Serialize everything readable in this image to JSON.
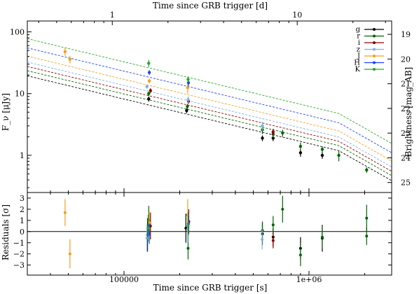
{
  "chart_data": {
    "type": "scatter",
    "top_xlabel": "Time since GRB trigger [d]",
    "xlabel": "Time since GRB trigger [s]",
    "ylabel": "F_ν [μJy]",
    "y2label": "Brightness [mag_AB]",
    "residual_ylabel": "Residuals [σ]",
    "x_scale": "log",
    "xlim": [
      30000,
      2800000
    ],
    "ylim": [
      0.25,
      150
    ],
    "y_scale": "log",
    "residual_ylim": [
      -3.9,
      3.5
    ],
    "legend_position": "top-right",
    "x_ticks": [
      {
        "value": 100000,
        "label": "100000"
      },
      {
        "value": 1000000,
        "label": "1e+06"
      }
    ],
    "top_ticks_days": [
      {
        "value": 1,
        "label": "1"
      },
      {
        "value": 10,
        "label": "10"
      }
    ],
    "y_ticks": [
      {
        "value": 1,
        "label": "1"
      },
      {
        "value": 10,
        "label": "10"
      },
      {
        "value": 100,
        "label": "100"
      }
    ],
    "mag_ticks": [
      {
        "value": 19,
        "label": "19"
      },
      {
        "value": 20,
        "label": "20"
      },
      {
        "value": 21,
        "label": "21"
      },
      {
        "value": 22,
        "label": "22"
      },
      {
        "value": 23,
        "label": "23"
      },
      {
        "value": 24,
        "label": "24"
      },
      {
        "value": 25,
        "label": "25"
      }
    ],
    "residual_ticks": [
      {
        "value": 3,
        "label": "3"
      },
      {
        "value": 2,
        "label": "2"
      },
      {
        "value": 1,
        "label": "1"
      },
      {
        "value": 0,
        "label": "0"
      },
      {
        "value": -1,
        "label": "−1"
      },
      {
        "value": -2,
        "label": "−2"
      },
      {
        "value": -3,
        "label": "−3"
      }
    ],
    "series": [
      {
        "name": "g",
        "color": "#000000",
        "model_scale": 0.24,
        "points": [
          [
            136000,
            8.2,
            0.8
          ],
          [
            218000,
            5.3,
            0.5
          ],
          [
            560000,
            1.9,
            0.2
          ],
          [
            640000,
            1.9,
            0.2
          ],
          [
            900000,
            1.1,
            0.15
          ],
          [
            1180000,
            1.0,
            0.12
          ]
        ],
        "residuals": [
          [
            134000,
            -0.3,
            1.5
          ],
          [
            216000,
            0.3,
            1.3
          ],
          [
            560000,
            -0.2,
            1.0
          ],
          [
            640000,
            -0.5,
            0.8
          ],
          [
            900000,
            -1.5,
            1.0
          ],
          [
            1180000,
            -0.6,
            1.2
          ]
        ]
      },
      {
        "name": "r",
        "color": "#006400",
        "model_scale": 0.29,
        "points": [
          [
            136000,
            10.0,
            0.8
          ],
          [
            220000,
            6.2,
            0.6
          ],
          [
            560000,
            2.6,
            0.4
          ],
          [
            640000,
            2.2,
            0.3
          ],
          [
            720000,
            2.3,
            0.3
          ],
          [
            900000,
            1.4,
            0.2
          ],
          [
            1180000,
            1.25,
            0.15
          ],
          [
            1450000,
            1.0,
            0.2
          ],
          [
            2050000,
            0.58,
            0.06
          ]
        ],
        "residuals": [
          [
            136000,
            1.0,
            1.3
          ],
          [
            222000,
            -1.5,
            1.0
          ],
          [
            560000,
            0.1,
            0.8
          ],
          [
            640000,
            0.6,
            0.8
          ],
          [
            720000,
            2.0,
            1.2
          ],
          [
            900000,
            -2.1,
            1.0
          ],
          [
            1180000,
            -0.5,
            1.0
          ],
          [
            2050000,
            1.2,
            1.2
          ],
          [
            2050000,
            -0.4,
            0.8
          ]
        ]
      },
      {
        "name": "i",
        "color": "#8b0000",
        "model_scale": 0.34,
        "points": [
          [
            139000,
            11.2,
            1.0
          ],
          [
            223000,
            7.5,
            0.7
          ],
          [
            640000,
            2.4,
            0.3
          ]
        ],
        "residuals": [
          [
            139000,
            0.5,
            1.2
          ],
          [
            224000,
            0.9,
            1.1
          ],
          [
            640000,
            -0.8,
            0.7
          ]
        ]
      },
      {
        "name": "z",
        "color": "#7ab0e8",
        "model_scale": 0.4,
        "points": [
          [
            133000,
            13.0,
            1.0
          ],
          [
            222000,
            8.0,
            1.0
          ],
          [
            560000,
            3.0,
            0.5
          ]
        ],
        "residuals": [
          [
            133000,
            -0.6,
            1.2
          ],
          [
            221000,
            0.2,
            1.2
          ],
          [
            558000,
            -0.7,
            0.9
          ]
        ]
      },
      {
        "name": "J",
        "color": "#f0a020",
        "model_scale": 0.5,
        "points": [
          [
            48000,
            48.0,
            7.0
          ],
          [
            51000,
            36.0,
            5.0
          ],
          [
            137000,
            16.0,
            1.4
          ],
          [
            221000,
            12.5,
            2.5
          ]
        ],
        "residuals": [
          [
            48000,
            1.7,
            1.2
          ],
          [
            51000,
            -2.0,
            1.3
          ],
          [
            137000,
            0.8,
            1.0
          ],
          [
            221000,
            1.5,
            1.4
          ]
        ]
      },
      {
        "name": "H",
        "color": "#1f3fff",
        "model_scale": 0.68,
        "points": [
          [
            137000,
            22.0,
            2.0
          ],
          [
            223000,
            15.0,
            2.0
          ]
        ],
        "residuals": [
          [
            137000,
            -0.2,
            0.9
          ],
          [
            223000,
            0.7,
            1.0
          ]
        ]
      },
      {
        "name": "K",
        "color": "#22aa22",
        "model_scale": 0.96,
        "points": [
          [
            136000,
            31.0,
            4.0
          ],
          [
            222000,
            17.0,
            2.0
          ]
        ],
        "residuals": [
          [
            135000,
            0.3,
            1.2
          ],
          [
            222000,
            0.5,
            1.0
          ]
        ]
      }
    ]
  }
}
